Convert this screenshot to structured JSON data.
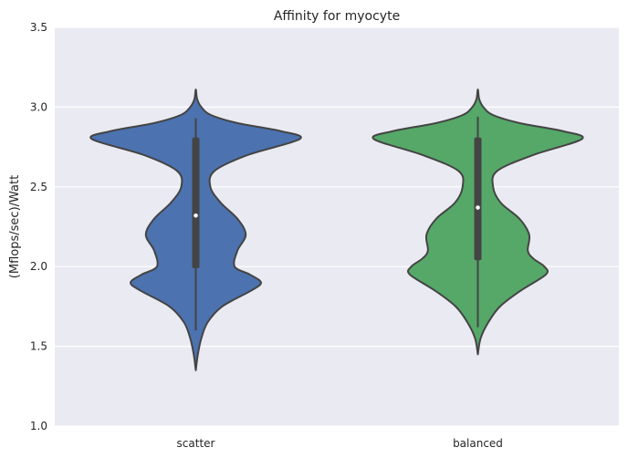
{
  "chart_data": {
    "type": "violin",
    "title": "Affinity for myocyte",
    "xlabel": "",
    "ylabel": "(Mflops/sec)/Watt",
    "ylim": [
      1.0,
      3.5
    ],
    "yticks": [
      "1.0",
      "1.5",
      "2.0",
      "2.5",
      "3.0",
      "3.5"
    ],
    "categories": [
      "scatter",
      "balanced"
    ],
    "grid": true,
    "series": [
      {
        "category": "scatter",
        "color": "#4c72b0",
        "median": 2.32,
        "q1": 1.99,
        "q3": 2.81,
        "whisker_low": 1.6,
        "whisker_high": 2.93,
        "profile": [
          [
            1.35,
            0.0
          ],
          [
            1.45,
            0.03
          ],
          [
            1.55,
            0.08
          ],
          [
            1.65,
            0.17
          ],
          [
            1.75,
            0.38
          ],
          [
            1.85,
            0.8
          ],
          [
            1.9,
            0.94
          ],
          [
            1.95,
            0.78
          ],
          [
            2.0,
            0.56
          ],
          [
            2.1,
            0.6
          ],
          [
            2.2,
            0.72
          ],
          [
            2.3,
            0.6
          ],
          [
            2.4,
            0.36
          ],
          [
            2.5,
            0.21
          ],
          [
            2.6,
            0.27
          ],
          [
            2.7,
            0.75
          ],
          [
            2.8,
            1.5
          ],
          [
            2.85,
            1.22
          ],
          [
            2.9,
            0.6
          ],
          [
            2.95,
            0.22
          ],
          [
            3.0,
            0.08
          ],
          [
            3.05,
            0.02
          ],
          [
            3.11,
            0.0
          ]
        ]
      },
      {
        "category": "balanced",
        "color": "#55a868",
        "median": 2.37,
        "q1": 2.04,
        "q3": 2.81,
        "whisker_low": 1.62,
        "whisker_high": 2.94,
        "profile": [
          [
            1.45,
            0.0
          ],
          [
            1.55,
            0.04
          ],
          [
            1.65,
            0.15
          ],
          [
            1.75,
            0.32
          ],
          [
            1.85,
            0.62
          ],
          [
            1.95,
            0.98
          ],
          [
            2.0,
            0.96
          ],
          [
            2.05,
            0.8
          ],
          [
            2.1,
            0.72
          ],
          [
            2.2,
            0.74
          ],
          [
            2.3,
            0.6
          ],
          [
            2.4,
            0.33
          ],
          [
            2.5,
            0.22
          ],
          [
            2.6,
            0.28
          ],
          [
            2.7,
            0.8
          ],
          [
            2.8,
            1.5
          ],
          [
            2.85,
            1.22
          ],
          [
            2.9,
            0.6
          ],
          [
            2.95,
            0.22
          ],
          [
            3.0,
            0.08
          ],
          [
            3.05,
            0.02
          ],
          [
            3.11,
            0.0
          ]
        ]
      }
    ]
  }
}
